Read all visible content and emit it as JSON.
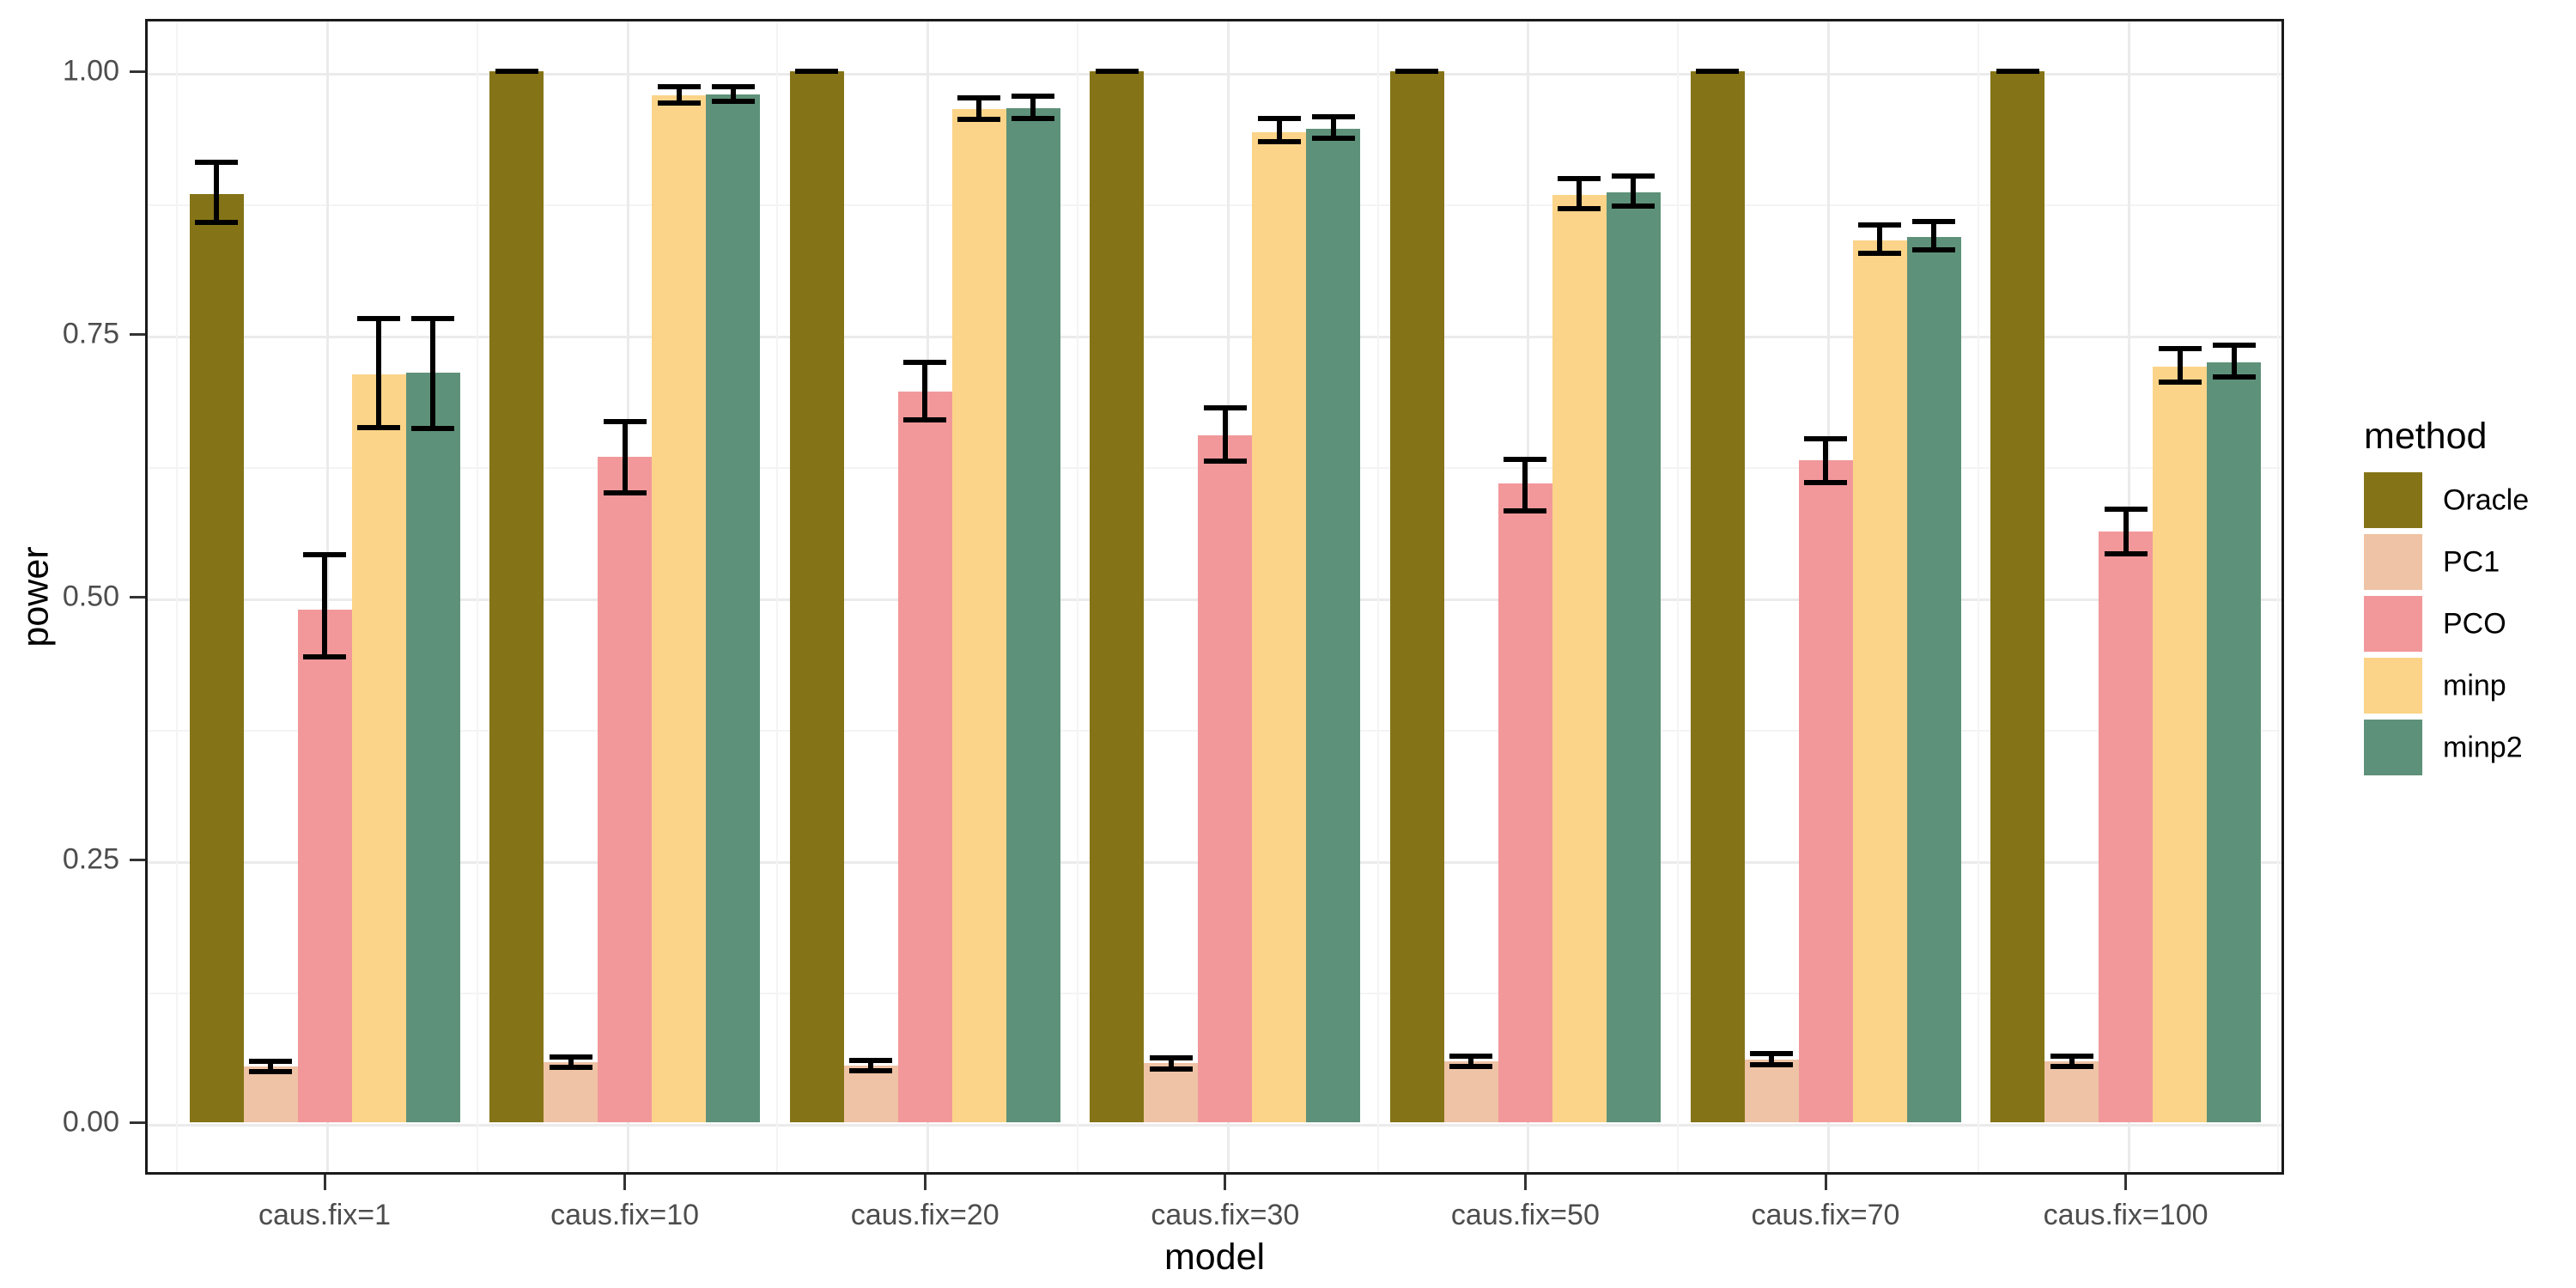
{
  "chart_data": {
    "type": "bar",
    "title": "",
    "xlabel": "model",
    "ylabel": "power",
    "legend_title": "method",
    "legend_position": "right",
    "grid": "on",
    "ylim": [
      0,
      1.05
    ],
    "ytick_values": [
      0,
      0.25,
      0.5,
      0.75,
      1.0
    ],
    "ytick_labels": [
      "0.00",
      "0.25",
      "0.50",
      "0.75",
      "1.00"
    ],
    "ytick_minor_values": [
      0.125,
      0.375,
      0.625,
      0.875
    ],
    "categories": [
      "caus.fix=1",
      "caus.fix=10",
      "caus.fix=20",
      "caus.fix=30",
      "caus.fix=50",
      "caus.fix=70",
      "caus.fix=100"
    ],
    "series": [
      {
        "name": "Oracle",
        "color": "#857417",
        "values": [
          0.883,
          1.0,
          1.0,
          1.0,
          1.0,
          1.0,
          1.0
        ],
        "err_lo": [
          0.856,
          1.0,
          1.0,
          1.0,
          1.0,
          1.0,
          1.0
        ],
        "err_hi": [
          0.913,
          1.0,
          1.0,
          1.0,
          1.0,
          1.0,
          1.0
        ]
      },
      {
        "name": "PC1",
        "color": "#EFC3A5",
        "values": [
          0.053,
          0.057,
          0.054,
          0.056,
          0.058,
          0.06,
          0.058
        ],
        "err_lo": [
          0.048,
          0.052,
          0.049,
          0.051,
          0.053,
          0.055,
          0.053
        ],
        "err_hi": [
          0.058,
          0.062,
          0.059,
          0.061,
          0.063,
          0.065,
          0.063
        ]
      },
      {
        "name": "PCO",
        "color": "#F2989A",
        "values": [
          0.488,
          0.633,
          0.695,
          0.654,
          0.608,
          0.63,
          0.562
        ],
        "err_lo": [
          0.443,
          0.599,
          0.668,
          0.629,
          0.582,
          0.609,
          0.541
        ],
        "err_hi": [
          0.54,
          0.667,
          0.723,
          0.68,
          0.631,
          0.65,
          0.583
        ]
      },
      {
        "name": "minp",
        "color": "#FBD489",
        "values": [
          0.712,
          0.977,
          0.964,
          0.942,
          0.882,
          0.839,
          0.719
        ],
        "err_lo": [
          0.661,
          0.97,
          0.954,
          0.933,
          0.869,
          0.827,
          0.704
        ],
        "err_hi": [
          0.765,
          0.985,
          0.975,
          0.955,
          0.898,
          0.854,
          0.736
        ]
      },
      {
        "name": "minp2",
        "color": "#5E9179",
        "values": [
          0.713,
          0.978,
          0.965,
          0.945,
          0.885,
          0.842,
          0.723
        ],
        "err_lo": [
          0.66,
          0.971,
          0.955,
          0.936,
          0.872,
          0.83,
          0.709
        ],
        "err_hi": [
          0.765,
          0.985,
          0.976,
          0.957,
          0.9,
          0.857,
          0.739
        ]
      }
    ],
    "colors": {
      "grid_major": "#EBEBEB",
      "grid_minor": "#F4F4F4",
      "panel_border": "#1A1A1A",
      "errorbar": "#000000",
      "tick_label": "#4D4D4D",
      "axis_title": "#000000",
      "background": "#FFFFFF"
    }
  }
}
